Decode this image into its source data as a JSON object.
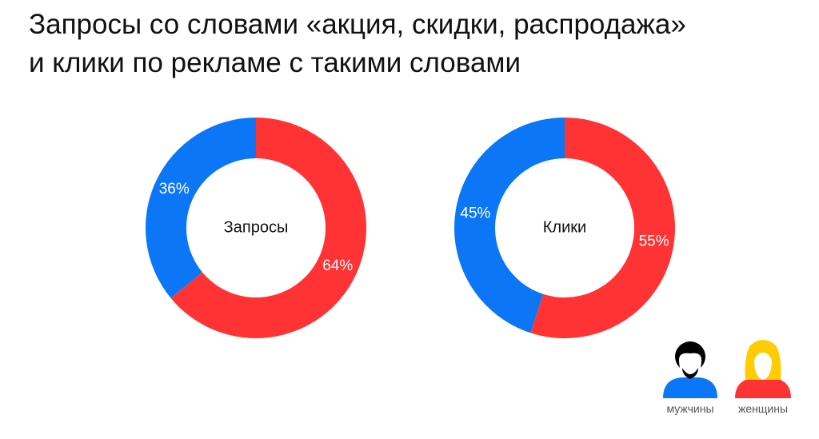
{
  "title": [
    "Запросы со словами «акция, скидки, распродажа»",
    "и клики по рекламе с такими словами"
  ],
  "chart_data": [
    {
      "type": "pie",
      "donut": true,
      "center_label": "Запросы",
      "categories": [
        "мужчины",
        "женщины"
      ],
      "values": [
        36,
        64
      ],
      "value_labels": [
        "36%",
        "64%"
      ],
      "colors": [
        "#0b77f6",
        "#ff3333"
      ]
    },
    {
      "type": "pie",
      "donut": true,
      "center_label": "Клики",
      "categories": [
        "мужчины",
        "женщины"
      ],
      "values": [
        45,
        55
      ],
      "value_labels": [
        "45%",
        "55%"
      ],
      "colors": [
        "#0b77f6",
        "#ff3333"
      ]
    }
  ]
}
